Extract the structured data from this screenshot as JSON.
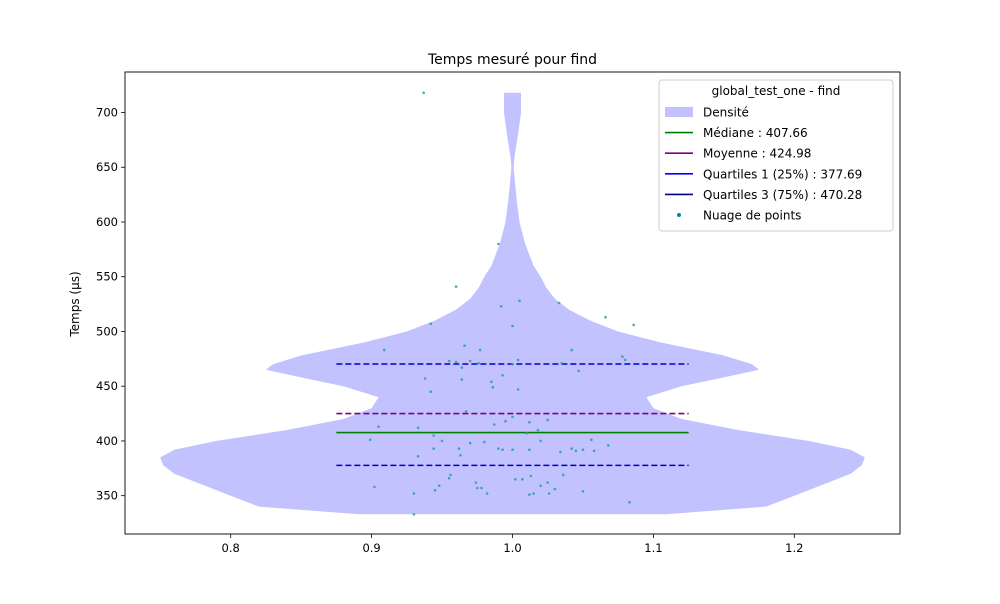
{
  "chart_data": {
    "type": "violin",
    "title": "Temps mesuré pour find",
    "xlabel": "",
    "ylabel": "Temps (µs)",
    "xlim": [
      0.725,
      1.275
    ],
    "ylim": [
      315,
      737
    ],
    "xticks": [
      0.8,
      0.9,
      1.0,
      1.1,
      1.2
    ],
    "xtick_labels": [
      "0.8",
      "0.9",
      "1.0",
      "1.1",
      "1.2"
    ],
    "yticks": [
      350,
      400,
      450,
      500,
      550,
      600,
      650,
      700
    ],
    "ytick_labels": [
      "350",
      "400",
      "450",
      "500",
      "550",
      "600",
      "650",
      "700"
    ],
    "grid": false,
    "legend_position": "top-right",
    "legend": {
      "title": "global_test_one - find",
      "items": [
        {
          "label": "Densité",
          "kind": "patch",
          "color": "#c2c2ff"
        },
        {
          "label": "Médiane : 407.66",
          "kind": "line",
          "color": "#008000",
          "dash": "solid"
        },
        {
          "label": "Moyenne : 424.98",
          "kind": "line",
          "color": "#800080",
          "dash": "solid"
        },
        {
          "label": "Quartiles 1 (25%) : 377.69",
          "kind": "line",
          "color": "#0000ff",
          "dash": "solid"
        },
        {
          "label": "Quartiles 3 (75%) : 470.28",
          "kind": "line",
          "color": "#00008b",
          "dash": "solid"
        },
        {
          "label": "Nuage de points",
          "kind": "point",
          "color": "#008b8b"
        }
      ]
    },
    "violin": {
      "center": 1.0,
      "color": "#c2c2ff",
      "profile": [
        [
          333,
          0.109
        ],
        [
          340,
          0.18
        ],
        [
          350,
          0.2
        ],
        [
          360,
          0.22
        ],
        [
          370,
          0.24
        ],
        [
          378,
          0.248
        ],
        [
          385,
          0.25
        ],
        [
          392,
          0.24
        ],
        [
          400,
          0.21
        ],
        [
          410,
          0.16
        ],
        [
          420,
          0.12
        ],
        [
          430,
          0.1
        ],
        [
          440,
          0.095
        ],
        [
          450,
          0.12
        ],
        [
          458,
          0.15
        ],
        [
          465,
          0.175
        ],
        [
          470,
          0.17
        ],
        [
          478,
          0.15
        ],
        [
          490,
          0.105
        ],
        [
          500,
          0.075
        ],
        [
          510,
          0.055
        ],
        [
          520,
          0.04
        ],
        [
          530,
          0.03
        ],
        [
          540,
          0.024
        ],
        [
          550,
          0.02
        ],
        [
          560,
          0.015
        ],
        [
          580,
          0.009
        ],
        [
          600,
          0.005
        ],
        [
          620,
          0.003
        ],
        [
          640,
          0.0015
        ],
        [
          650,
          0.0008
        ],
        [
          660,
          0.0015
        ],
        [
          680,
          0.004
        ],
        [
          700,
          0.006
        ],
        [
          718,
          0.006
        ]
      ]
    },
    "lines": [
      {
        "name": "Médiane",
        "value": 407.66,
        "x": [
          0.875,
          1.125
        ],
        "color": "#008000",
        "dash": "solid"
      },
      {
        "name": "Moyenne",
        "value": 424.98,
        "x": [
          0.875,
          1.125
        ],
        "color": "#800080",
        "dash": "dashed"
      },
      {
        "name": "Quartiles 1 (25%)",
        "value": 377.69,
        "x": [
          0.875,
          1.125
        ],
        "color": "#0000cd",
        "dash": "dashed"
      },
      {
        "name": "Quartiles 3 (75%)",
        "value": 470.28,
        "x": [
          0.875,
          1.125
        ],
        "color": "#0000cd",
        "dash": "dashed"
      }
    ],
    "points": {
      "name": "Nuage de points",
      "color": "#2a9d9d",
      "data": [
        [
          0.937,
          718
        ],
        [
          0.99,
          580
        ],
        [
          0.96,
          541
        ],
        [
          1.005,
          528
        ],
        [
          0.992,
          523
        ],
        [
          1.033,
          526
        ],
        [
          0.942,
          507
        ],
        [
          1.0,
          505
        ],
        [
          1.066,
          513
        ],
        [
          1.086,
          506
        ],
        [
          0.977,
          483
        ],
        [
          0.966,
          487
        ],
        [
          0.909,
          483
        ],
        [
          1.042,
          483
        ],
        [
          1.078,
          477
        ],
        [
          0.955,
          473
        ],
        [
          0.96,
          472
        ],
        [
          0.97,
          473
        ],
        [
          0.976,
          471
        ],
        [
          0.964,
          467
        ],
        [
          1.0,
          470
        ],
        [
          1.004,
          474
        ],
        [
          1.035,
          471
        ],
        [
          1.08,
          474
        ],
        [
          1.047,
          464
        ],
        [
          0.938,
          457
        ],
        [
          0.964,
          456
        ],
        [
          0.985,
          454
        ],
        [
          0.986,
          449
        ],
        [
          1.004,
          447
        ],
        [
          0.942,
          445
        ],
        [
          0.993,
          460
        ],
        [
          0.905,
          413
        ],
        [
          0.933,
          412
        ],
        [
          0.944,
          405
        ],
        [
          0.899,
          401
        ],
        [
          0.967,
          427
        ],
        [
          0.995,
          418
        ],
        [
          1.0,
          422
        ],
        [
          1.012,
          417
        ],
        [
          1.025,
          419
        ],
        [
          1.018,
          410
        ],
        [
          1.01,
          407
        ],
        [
          0.987,
          415
        ],
        [
          1.02,
          400
        ],
        [
          0.95,
          400
        ],
        [
          0.97,
          398
        ],
        [
          0.98,
          399
        ],
        [
          0.944,
          393
        ],
        [
          0.962,
          393
        ],
        [
          0.99,
          393
        ],
        [
          0.993,
          392
        ],
        [
          1.0,
          392
        ],
        [
          1.012,
          392
        ],
        [
          1.034,
          390
        ],
        [
          1.042,
          393
        ],
        [
          1.05,
          392
        ],
        [
          1.056,
          401
        ],
        [
          1.068,
          396
        ],
        [
          1.058,
          391
        ],
        [
          0.933,
          386
        ],
        [
          0.963,
          387
        ],
        [
          1.045,
          391
        ],
        [
          0.902,
          358
        ],
        [
          0.93,
          352
        ],
        [
          0.945,
          355
        ],
        [
          0.948,
          359
        ],
        [
          0.956,
          369
        ],
        [
          0.955,
          366
        ],
        [
          0.974,
          362
        ],
        [
          0.978,
          357
        ],
        [
          0.982,
          352
        ],
        [
          1.002,
          365
        ],
        [
          1.007,
          365
        ],
        [
          1.012,
          351
        ],
        [
          1.015,
          352
        ],
        [
          1.02,
          359
        ],
        [
          1.025,
          362
        ],
        [
          1.026,
          352
        ],
        [
          1.03,
          356
        ],
        [
          1.036,
          369
        ],
        [
          1.05,
          354
        ],
        [
          1.083,
          344
        ],
        [
          0.93,
          333
        ],
        [
          0.975,
          357
        ],
        [
          1.013,
          368
        ]
      ]
    }
  }
}
